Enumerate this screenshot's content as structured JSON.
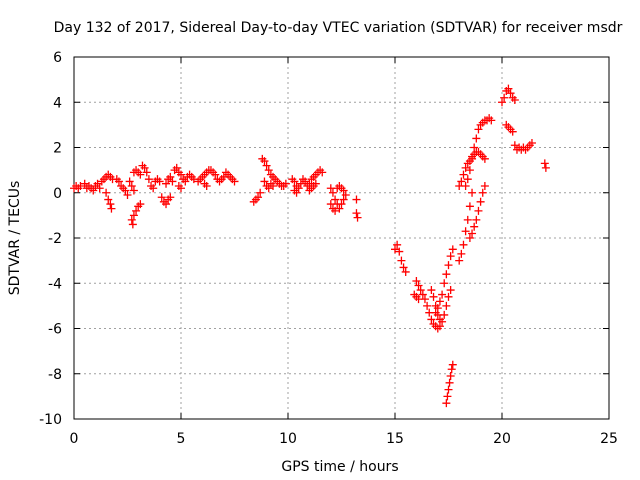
{
  "chart_data": {
    "type": "scatter",
    "title": "Day 132 of 2017, Sidereal Day-to-day VTEC variation (SDTVAR) for receiver msdr",
    "xlabel": "GPS time / hours",
    "ylabel": "SDTVAR / TECUs",
    "xlim": [
      0,
      25
    ],
    "ylim": [
      -10,
      6
    ],
    "xticks": [
      0,
      5,
      10,
      15,
      20,
      25
    ],
    "yticks": [
      -10,
      -8,
      -6,
      -4,
      -2,
      0,
      2,
      4,
      6
    ],
    "grid": true,
    "marker": "plus",
    "series_color": "#ff0000",
    "series": [
      {
        "name": "SDTVAR",
        "points": [
          [
            0.0,
            0.2
          ],
          [
            0.1,
            0.3
          ],
          [
            0.2,
            0.2
          ],
          [
            0.3,
            0.3
          ],
          [
            0.5,
            0.4
          ],
          [
            0.6,
            0.2
          ],
          [
            0.7,
            0.3
          ],
          [
            0.8,
            0.2
          ],
          [
            0.9,
            0.1
          ],
          [
            1.0,
            0.3
          ],
          [
            1.1,
            0.4
          ],
          [
            1.2,
            0.2
          ],
          [
            1.3,
            0.5
          ],
          [
            1.4,
            0.6
          ],
          [
            1.5,
            0.7
          ],
          [
            1.6,
            0.8
          ],
          [
            1.7,
            0.7
          ],
          [
            1.8,
            0.6
          ],
          [
            1.5,
            0.0
          ],
          [
            1.6,
            -0.3
          ],
          [
            1.7,
            -0.5
          ],
          [
            1.75,
            -0.7
          ],
          [
            2.0,
            0.6
          ],
          [
            2.1,
            0.5
          ],
          [
            2.2,
            0.3
          ],
          [
            2.3,
            0.2
          ],
          [
            2.4,
            0.1
          ],
          [
            2.5,
            -0.1
          ],
          [
            2.6,
            0.5
          ],
          [
            2.7,
            0.3
          ],
          [
            2.8,
            0.1
          ],
          [
            2.7,
            -1.2
          ],
          [
            2.75,
            -1.4
          ],
          [
            2.8,
            -1.0
          ],
          [
            2.9,
            -0.8
          ],
          [
            3.0,
            -0.6
          ],
          [
            3.1,
            -0.5
          ],
          [
            2.8,
            0.9
          ],
          [
            2.9,
            1.0
          ],
          [
            3.0,
            0.9
          ],
          [
            3.1,
            0.8
          ],
          [
            3.2,
            1.2
          ],
          [
            3.3,
            1.1
          ],
          [
            3.4,
            0.9
          ],
          [
            3.5,
            0.6
          ],
          [
            3.6,
            0.3
          ],
          [
            3.7,
            0.2
          ],
          [
            3.8,
            0.5
          ],
          [
            3.9,
            0.6
          ],
          [
            4.0,
            0.5
          ],
          [
            4.1,
            -0.2
          ],
          [
            4.2,
            -0.4
          ],
          [
            4.3,
            -0.5
          ],
          [
            4.4,
            -0.3
          ],
          [
            4.5,
            -0.2
          ],
          [
            4.3,
            0.4
          ],
          [
            4.4,
            0.6
          ],
          [
            4.5,
            0.7
          ],
          [
            4.6,
            0.5
          ],
          [
            4.7,
            1.0
          ],
          [
            4.8,
            1.1
          ],
          [
            4.9,
            0.9
          ],
          [
            5.0,
            0.8
          ],
          [
            5.1,
            0.6
          ],
          [
            5.2,
            0.5
          ],
          [
            5.3,
            0.7
          ],
          [
            5.4,
            0.8
          ],
          [
            5.5,
            0.7
          ],
          [
            5.6,
            0.6
          ],
          [
            4.9,
            0.3
          ],
          [
            5.0,
            0.2
          ],
          [
            5.8,
            0.5
          ],
          [
            5.9,
            0.6
          ],
          [
            6.0,
            0.7
          ],
          [
            6.1,
            0.8
          ],
          [
            6.2,
            0.9
          ],
          [
            6.3,
            1.0
          ],
          [
            6.4,
            1.0
          ],
          [
            6.5,
            0.9
          ],
          [
            6.6,
            0.8
          ],
          [
            6.7,
            0.6
          ],
          [
            6.8,
            0.5
          ],
          [
            6.1,
            0.4
          ],
          [
            6.2,
            0.3
          ],
          [
            6.9,
            0.6
          ],
          [
            7.0,
            0.7
          ],
          [
            7.1,
            0.9
          ],
          [
            7.2,
            0.8
          ],
          [
            7.3,
            0.7
          ],
          [
            7.4,
            0.6
          ],
          [
            7.5,
            0.5
          ],
          [
            8.4,
            -0.4
          ],
          [
            8.5,
            -0.3
          ],
          [
            8.6,
            -0.2
          ],
          [
            8.7,
            0.0
          ],
          [
            8.8,
            1.5
          ],
          [
            8.9,
            1.4
          ],
          [
            9.0,
            1.2
          ],
          [
            9.1,
            1.0
          ],
          [
            9.2,
            0.8
          ],
          [
            9.3,
            0.7
          ],
          [
            9.4,
            0.6
          ],
          [
            9.5,
            0.5
          ],
          [
            9.6,
            0.4
          ],
          [
            9.7,
            0.3
          ],
          [
            9.8,
            0.3
          ],
          [
            9.9,
            0.4
          ],
          [
            8.9,
            0.5
          ],
          [
            9.0,
            0.3
          ],
          [
            9.1,
            0.2
          ],
          [
            9.2,
            0.4
          ],
          [
            9.3,
            0.3
          ],
          [
            10.2,
            0.6
          ],
          [
            10.3,
            0.5
          ],
          [
            10.4,
            0.3
          ],
          [
            10.5,
            0.2
          ],
          [
            10.6,
            0.4
          ],
          [
            10.7,
            0.6
          ],
          [
            10.8,
            0.5
          ],
          [
            10.9,
            0.3
          ],
          [
            10.3,
            0.1
          ],
          [
            10.4,
            0.0
          ],
          [
            11.0,
            0.4
          ],
          [
            11.1,
            0.6
          ],
          [
            11.2,
            0.7
          ],
          [
            11.3,
            0.8
          ],
          [
            11.4,
            0.9
          ],
          [
            11.5,
            1.0
          ],
          [
            11.6,
            0.9
          ],
          [
            11.0,
            0.1
          ],
          [
            11.1,
            0.2
          ],
          [
            11.2,
            0.3
          ],
          [
            11.3,
            0.4
          ],
          [
            12.0,
            0.2
          ],
          [
            12.1,
            0.0
          ],
          [
            12.2,
            -0.3
          ],
          [
            12.3,
            -0.5
          ],
          [
            12.4,
            -0.7
          ],
          [
            12.5,
            -0.5
          ],
          [
            12.6,
            -0.3
          ],
          [
            12.7,
            -0.1
          ],
          [
            12.0,
            -0.5
          ],
          [
            12.1,
            -0.7
          ],
          [
            12.2,
            -0.8
          ],
          [
            12.3,
            0.2
          ],
          [
            12.4,
            0.3
          ],
          [
            12.5,
            0.2
          ],
          [
            12.6,
            0.1
          ],
          [
            13.2,
            -0.3
          ],
          [
            13.2,
            -0.9
          ],
          [
            13.25,
            -1.1
          ],
          [
            15.0,
            -2.5
          ],
          [
            15.1,
            -2.3
          ],
          [
            15.2,
            -2.6
          ],
          [
            15.3,
            -3.0
          ],
          [
            15.4,
            -3.3
          ],
          [
            15.5,
            -3.5
          ],
          [
            16.0,
            -3.9
          ],
          [
            16.1,
            -4.1
          ],
          [
            16.2,
            -4.3
          ],
          [
            16.3,
            -4.5
          ],
          [
            16.4,
            -4.7
          ],
          [
            15.9,
            -4.5
          ],
          [
            16.0,
            -4.6
          ],
          [
            16.1,
            -4.7
          ],
          [
            16.5,
            -5.0
          ],
          [
            16.6,
            -5.3
          ],
          [
            16.7,
            -5.6
          ],
          [
            16.8,
            -5.8
          ],
          [
            16.9,
            -5.9
          ],
          [
            17.0,
            -6.0
          ],
          [
            17.1,
            -5.9
          ],
          [
            17.2,
            -5.7
          ],
          [
            17.3,
            -5.4
          ],
          [
            17.4,
            -5.0
          ],
          [
            17.5,
            -4.6
          ],
          [
            17.6,
            -4.3
          ],
          [
            16.7,
            -4.3
          ],
          [
            16.8,
            -4.6
          ],
          [
            16.9,
            -5.0
          ],
          [
            17.0,
            -5.4
          ],
          [
            17.1,
            -5.6
          ],
          [
            16.9,
            -5.3
          ],
          [
            17.0,
            -5.1
          ],
          [
            17.1,
            -4.8
          ],
          [
            17.2,
            -4.5
          ],
          [
            17.3,
            -4.0
          ],
          [
            17.4,
            -3.6
          ],
          [
            17.5,
            -3.2
          ],
          [
            17.6,
            -2.8
          ],
          [
            17.7,
            -2.5
          ],
          [
            17.4,
            -9.3
          ],
          [
            17.45,
            -9.0
          ],
          [
            17.5,
            -8.7
          ],
          [
            17.55,
            -8.4
          ],
          [
            17.6,
            -8.1
          ],
          [
            17.65,
            -7.8
          ],
          [
            17.7,
            -7.6
          ],
          [
            18.0,
            -3.0
          ],
          [
            18.1,
            -2.7
          ],
          [
            18.2,
            -2.3
          ],
          [
            18.3,
            -1.7
          ],
          [
            18.4,
            -1.2
          ],
          [
            18.5,
            -0.6
          ],
          [
            18.6,
            0.0
          ],
          [
            18.5,
            -2.0
          ],
          [
            18.6,
            -1.8
          ],
          [
            18.7,
            -1.5
          ],
          [
            18.8,
            -1.2
          ],
          [
            18.9,
            -0.8
          ],
          [
            19.0,
            -0.4
          ],
          [
            19.1,
            0.0
          ],
          [
            19.2,
            0.3
          ],
          [
            18.0,
            0.3
          ],
          [
            18.1,
            0.5
          ],
          [
            18.2,
            0.8
          ],
          [
            18.3,
            1.1
          ],
          [
            18.4,
            1.3
          ],
          [
            18.5,
            1.4
          ],
          [
            18.6,
            1.6
          ],
          [
            18.7,
            1.7
          ],
          [
            18.8,
            1.8
          ],
          [
            18.9,
            1.8
          ],
          [
            19.0,
            1.7
          ],
          [
            19.1,
            1.6
          ],
          [
            19.2,
            1.5
          ],
          [
            18.3,
            0.3
          ],
          [
            18.4,
            0.6
          ],
          [
            18.5,
            1.0
          ],
          [
            18.6,
            1.5
          ],
          [
            18.7,
            2.0
          ],
          [
            18.8,
            2.4
          ],
          [
            18.9,
            2.8
          ],
          [
            19.0,
            3.0
          ],
          [
            19.1,
            3.1
          ],
          [
            19.2,
            3.2
          ],
          [
            19.3,
            3.2
          ],
          [
            19.4,
            3.3
          ],
          [
            19.5,
            3.2
          ],
          [
            20.0,
            4.0
          ],
          [
            20.1,
            4.2
          ],
          [
            20.2,
            4.5
          ],
          [
            20.3,
            4.6
          ],
          [
            20.4,
            4.4
          ],
          [
            20.5,
            4.2
          ],
          [
            20.6,
            4.1
          ],
          [
            20.2,
            3.0
          ],
          [
            20.3,
            2.9
          ],
          [
            20.4,
            2.8
          ],
          [
            20.5,
            2.7
          ],
          [
            20.6,
            2.1
          ],
          [
            20.7,
            1.9
          ],
          [
            20.8,
            2.0
          ],
          [
            20.9,
            1.9
          ],
          [
            21.0,
            2.0
          ],
          [
            21.1,
            1.9
          ],
          [
            21.2,
            2.0
          ],
          [
            21.3,
            2.1
          ],
          [
            21.4,
            2.2
          ],
          [
            22.0,
            1.3
          ],
          [
            22.05,
            1.1
          ]
        ]
      }
    ]
  }
}
